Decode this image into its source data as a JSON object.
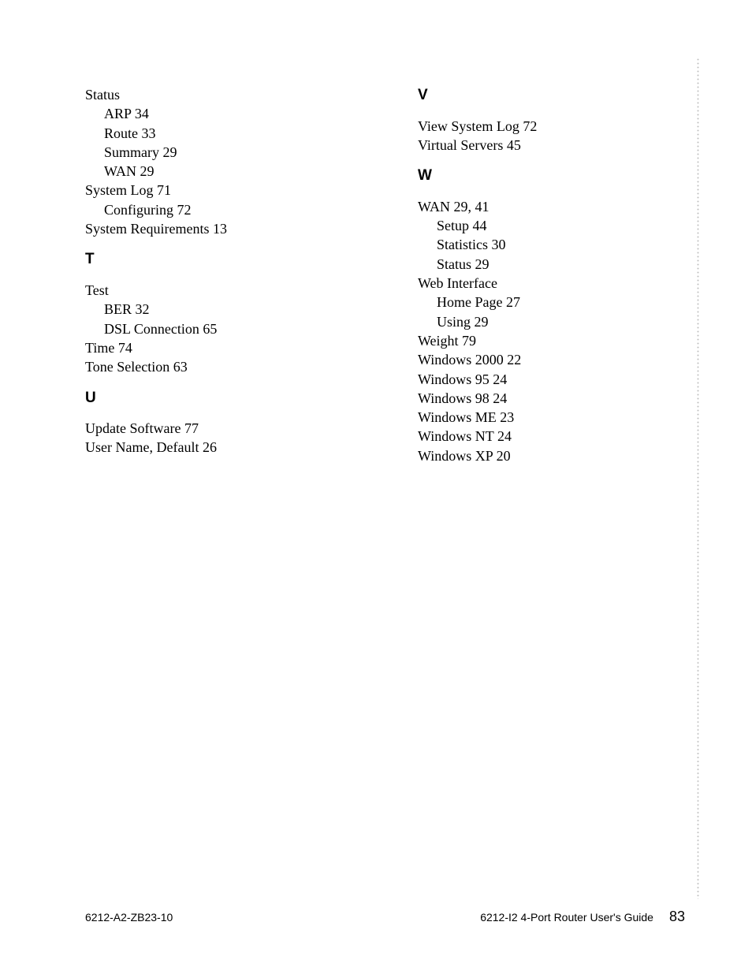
{
  "columns": {
    "left": {
      "start_entries": [
        {
          "text": "Status",
          "level": 0
        },
        {
          "text": "ARP 34",
          "level": 1
        },
        {
          "text": "Route 33",
          "level": 1
        },
        {
          "text": "Summary 29",
          "level": 1
        },
        {
          "text": "WAN 29",
          "level": 1
        },
        {
          "text": "System Log 71",
          "level": 0
        },
        {
          "text": "Configuring 72",
          "level": 1
        },
        {
          "text": "System Requirements 13",
          "level": 0
        }
      ],
      "sections": [
        {
          "heading": "T",
          "entries": [
            {
              "text": "Test",
              "level": 0
            },
            {
              "text": "BER 32",
              "level": 1
            },
            {
              "text": "DSL Connection 65",
              "level": 1
            },
            {
              "text": "Time 74",
              "level": 0
            },
            {
              "text": "Tone Selection 63",
              "level": 0
            }
          ]
        },
        {
          "heading": "U",
          "entries": [
            {
              "text": "Update Software 77",
              "level": 0
            },
            {
              "text": "User Name, Default 26",
              "level": 0
            }
          ]
        }
      ]
    },
    "right": {
      "sections": [
        {
          "heading": "V",
          "entries": [
            {
              "text": "View System Log 72",
              "level": 0
            },
            {
              "text": "Virtual Servers 45",
              "level": 0
            }
          ]
        },
        {
          "heading": "W",
          "entries": [
            {
              "text": "WAN 29, 41",
              "level": 0
            },
            {
              "text": "Setup 44",
              "level": 1
            },
            {
              "text": "Statistics 30",
              "level": 1
            },
            {
              "text": "Status 29",
              "level": 1
            },
            {
              "text": "Web Interface",
              "level": 0
            },
            {
              "text": "Home Page 27",
              "level": 1
            },
            {
              "text": "Using 29",
              "level": 1
            },
            {
              "text": "Weight 79",
              "level": 0
            },
            {
              "text": "Windows 2000 22",
              "level": 0
            },
            {
              "text": "Windows 95 24",
              "level": 0
            },
            {
              "text": "Windows 98 24",
              "level": 0
            },
            {
              "text": "Windows ME 23",
              "level": 0
            },
            {
              "text": "Windows NT 24",
              "level": 0
            },
            {
              "text": "Windows XP 20",
              "level": 0
            }
          ]
        }
      ]
    }
  },
  "footer": {
    "left": "6212-A2-ZB23-10",
    "right_title": "6212-I2 4-Port Router User's Guide",
    "page_number": "83"
  }
}
